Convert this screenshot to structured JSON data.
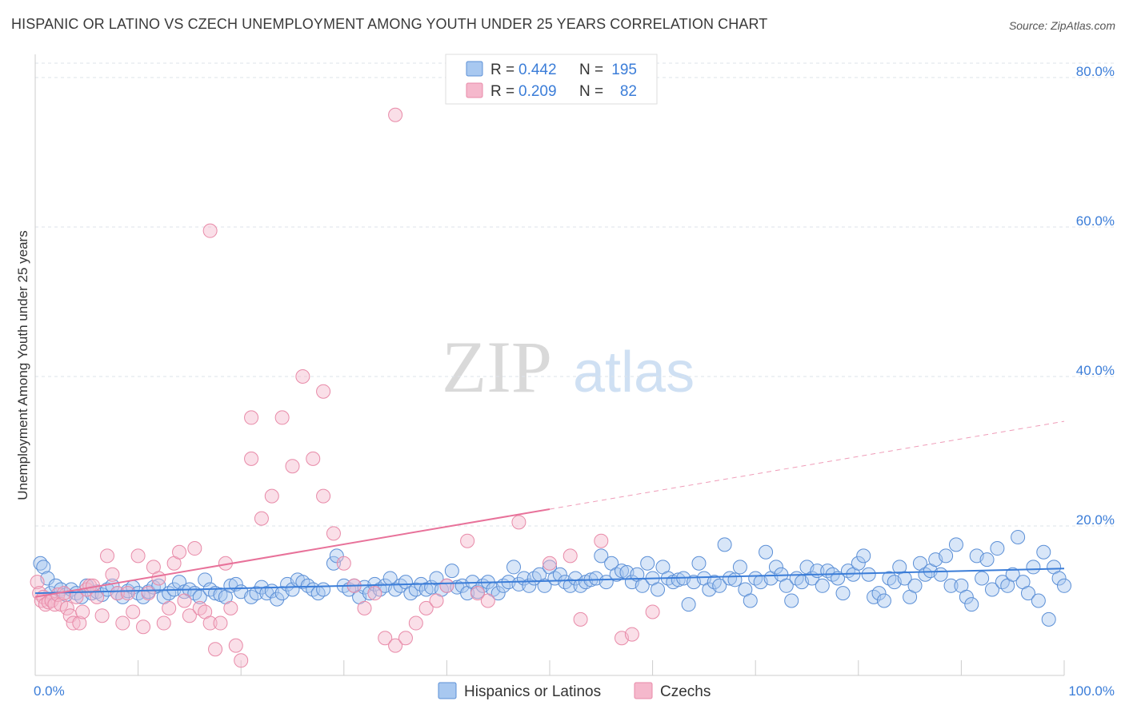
{
  "header": {
    "title": "HISPANIC OR LATINO VS CZECH UNEMPLOYMENT AMONG YOUTH UNDER 25 YEARS CORRELATION CHART",
    "source": "Source: ZipAtlas.com"
  },
  "watermark": {
    "part1": "ZIP",
    "part2": "atlas"
  },
  "colors": {
    "blue_fill": "#a8c8f0",
    "blue_stroke": "#5b8fd6",
    "blue_line": "#3b7dd8",
    "blue_text": "#3b7dd8",
    "pink_fill": "#f5b8cc",
    "pink_stroke": "#e88aa8",
    "pink_line": "#e8729a",
    "grid": "#dde3ea",
    "axis": "#cccccc"
  },
  "legend_top": {
    "rows": [
      {
        "r_label": "R = ",
        "r_value": "0.442",
        "n_label": "N = ",
        "n_value": "195",
        "series": "blue"
      },
      {
        "r_label": "R = ",
        "r_value": "0.209",
        "n_label": "N = ",
        "n_value": "82",
        "series": "pink"
      }
    ]
  },
  "legend_bottom": [
    "Hispanics or Latinos",
    "Czechs"
  ],
  "chart_data": {
    "type": "scatter",
    "title": "HISPANIC OR LATINO VS CZECH UNEMPLOYMENT AMONG YOUTH UNDER 25 YEARS CORRELATION CHART",
    "xlabel": "",
    "ylabel": "Unemployment Among Youth under 25 years",
    "xlim": [
      0,
      100
    ],
    "ylim": [
      0,
      80
    ],
    "x_tick_labels": [
      "0.0%",
      "100.0%"
    ],
    "y_ticks": [
      20,
      40,
      60,
      80
    ],
    "y_tick_labels": [
      "20.0%",
      "40.0%",
      "60.0%",
      "80.0%"
    ],
    "legend_position": "top-center",
    "series": [
      {
        "name": "Hispanics or Latinos",
        "color": "blue",
        "trend": {
          "x0": 0,
          "y0": 11.0,
          "x1": 100,
          "y1": 14.3,
          "dashed_from": null
        },
        "points": [
          [
            0.5,
            15
          ],
          [
            0.8,
            14.5
          ],
          [
            1.2,
            13
          ],
          [
            1.5,
            11
          ],
          [
            2,
            12
          ],
          [
            2.5,
            11.5
          ],
          [
            3,
            10.8
          ],
          [
            3.5,
            11.5
          ],
          [
            4,
            11
          ],
          [
            4.5,
            10.5
          ],
          [
            5,
            12
          ],
          [
            5.5,
            11
          ],
          [
            6,
            11.2
          ],
          [
            6.5,
            10.8
          ],
          [
            7,
            11.5
          ],
          [
            7.5,
            12
          ],
          [
            8,
            11
          ],
          [
            8.5,
            10.5
          ],
          [
            9,
            11.3
          ],
          [
            9.5,
            11.8
          ],
          [
            10,
            11
          ],
          [
            10.5,
            10.5
          ],
          [
            11,
            11.2
          ],
          [
            11.5,
            11.8
          ],
          [
            12,
            12
          ],
          [
            12.5,
            10.5
          ],
          [
            13,
            11
          ],
          [
            13.5,
            11.5
          ],
          [
            14,
            12.5
          ],
          [
            14.5,
            11.2
          ],
          [
            15,
            11.5
          ],
          [
            15.5,
            11
          ],
          [
            16,
            10.5
          ],
          [
            16.5,
            12.8
          ],
          [
            17,
            11.5
          ],
          [
            17.5,
            11
          ],
          [
            18,
            10.8
          ],
          [
            18.5,
            10.5
          ],
          [
            19,
            12
          ],
          [
            19.5,
            12.2
          ],
          [
            20,
            11.2
          ],
          [
            21,
            10.5
          ],
          [
            21.5,
            11
          ],
          [
            22,
            11.8
          ],
          [
            22.5,
            11
          ],
          [
            23,
            11.3
          ],
          [
            23.5,
            10.2
          ],
          [
            24,
            11
          ],
          [
            24.5,
            12.2
          ],
          [
            25,
            11.5
          ],
          [
            25.5,
            12.8
          ],
          [
            26,
            12.5
          ],
          [
            26.5,
            12
          ],
          [
            27,
            11.5
          ],
          [
            27.5,
            11
          ],
          [
            28,
            11.5
          ],
          [
            29,
            15
          ],
          [
            29.3,
            16
          ],
          [
            30,
            12
          ],
          [
            30.5,
            11.5
          ],
          [
            31,
            12
          ],
          [
            31.5,
            10.5
          ],
          [
            32,
            11.8
          ],
          [
            32.5,
            11
          ],
          [
            33,
            12.2
          ],
          [
            33.5,
            11.5
          ],
          [
            34,
            12
          ],
          [
            34.5,
            13
          ],
          [
            35,
            11.5
          ],
          [
            35.5,
            12
          ],
          [
            36,
            12.5
          ],
          [
            36.5,
            11
          ],
          [
            37,
            11.5
          ],
          [
            37.5,
            12.2
          ],
          [
            38,
            11.5
          ],
          [
            38.5,
            11.8
          ],
          [
            39,
            13
          ],
          [
            39.5,
            11.5
          ],
          [
            40,
            12
          ],
          [
            40.5,
            14
          ],
          [
            41,
            11.8
          ],
          [
            41.5,
            12
          ],
          [
            42,
            11
          ],
          [
            42.5,
            12.5
          ],
          [
            43,
            11.2
          ],
          [
            43.5,
            12
          ],
          [
            44,
            12.5
          ],
          [
            44.5,
            11.5
          ],
          [
            45,
            11
          ],
          [
            45.5,
            12
          ],
          [
            46,
            12.5
          ],
          [
            46.5,
            14.5
          ],
          [
            47,
            12.2
          ],
          [
            47.5,
            13
          ],
          [
            48,
            12
          ],
          [
            48.5,
            13
          ],
          [
            49,
            13.5
          ],
          [
            49.5,
            12
          ],
          [
            50,
            14.5
          ],
          [
            50.5,
            13
          ],
          [
            51,
            13.5
          ],
          [
            51.5,
            12.5
          ],
          [
            52,
            12
          ],
          [
            52.5,
            13
          ],
          [
            53,
            12
          ],
          [
            53.5,
            12.5
          ],
          [
            54,
            12.8
          ],
          [
            54.5,
            13
          ],
          [
            55,
            16
          ],
          [
            55.5,
            12.5
          ],
          [
            56,
            15
          ],
          [
            56.5,
            13.5
          ],
          [
            57,
            14
          ],
          [
            57.5,
            13.8
          ],
          [
            58,
            12.5
          ],
          [
            58.5,
            13.5
          ],
          [
            59,
            12
          ],
          [
            59.5,
            15
          ],
          [
            60,
            13
          ],
          [
            60.5,
            11.5
          ],
          [
            61,
            14.5
          ],
          [
            61.5,
            13
          ],
          [
            62,
            12.5
          ],
          [
            62.5,
            12.8
          ],
          [
            63,
            13
          ],
          [
            63.5,
            9.5
          ],
          [
            64,
            12.5
          ],
          [
            64.5,
            15
          ],
          [
            65,
            13
          ],
          [
            65.5,
            11.5
          ],
          [
            66,
            12.5
          ],
          [
            66.5,
            12
          ],
          [
            67,
            17.5
          ],
          [
            67.5,
            13
          ],
          [
            68,
            12.8
          ],
          [
            68.5,
            14.5
          ],
          [
            69,
            11.5
          ],
          [
            69.5,
            10
          ],
          [
            70,
            13
          ],
          [
            70.5,
            12.5
          ],
          [
            71,
            16.5
          ],
          [
            71.5,
            13
          ],
          [
            72,
            14.5
          ],
          [
            72.5,
            13.5
          ],
          [
            73,
            12
          ],
          [
            73.5,
            10
          ],
          [
            74,
            13
          ],
          [
            74.5,
            12.5
          ],
          [
            75,
            14.5
          ],
          [
            75.5,
            13
          ],
          [
            76,
            14
          ],
          [
            76.5,
            12
          ],
          [
            77,
            14
          ],
          [
            77.5,
            13.5
          ],
          [
            78,
            13
          ],
          [
            78.5,
            11
          ],
          [
            79,
            14
          ],
          [
            79.5,
            13.5
          ],
          [
            80,
            15
          ],
          [
            80.5,
            16
          ],
          [
            81,
            13.5
          ],
          [
            81.5,
            10.5
          ],
          [
            82,
            11
          ],
          [
            82.5,
            10
          ],
          [
            83,
            13
          ],
          [
            83.5,
            12.5
          ],
          [
            84,
            14.5
          ],
          [
            84.5,
            13
          ],
          [
            85,
            10.5
          ],
          [
            85.5,
            12
          ],
          [
            86,
            15
          ],
          [
            86.5,
            13.5
          ],
          [
            87,
            14
          ],
          [
            87.5,
            15.5
          ],
          [
            88,
            13.5
          ],
          [
            88.5,
            16
          ],
          [
            89,
            12
          ],
          [
            89.5,
            17.5
          ],
          [
            90,
            12
          ],
          [
            90.5,
            10.5
          ],
          [
            91,
            9.5
          ],
          [
            91.5,
            16
          ],
          [
            92,
            13
          ],
          [
            92.5,
            15.5
          ],
          [
            93,
            11.5
          ],
          [
            93.5,
            17
          ],
          [
            94,
            12.5
          ],
          [
            94.5,
            12
          ],
          [
            95,
            13.5
          ],
          [
            95.5,
            18.5
          ],
          [
            96,
            12.5
          ],
          [
            96.5,
            11
          ],
          [
            97,
            14.5
          ],
          [
            97.5,
            10
          ],
          [
            98,
            16.5
          ],
          [
            98.5,
            7.5
          ],
          [
            99,
            14.5
          ],
          [
            99.5,
            13
          ],
          [
            100,
            12
          ]
        ]
      },
      {
        "name": "Czechs",
        "color": "pink",
        "trend": {
          "x0": 0,
          "y0": 10.5,
          "x1": 100,
          "y1": 34.0,
          "dashed_from": 50
        },
        "points": [
          [
            0.2,
            12.5
          ],
          [
            0.4,
            11
          ],
          [
            0.6,
            10
          ],
          [
            0.8,
            10.5
          ],
          [
            1,
            9.5
          ],
          [
            1.3,
            9.8
          ],
          [
            1.6,
            10
          ],
          [
            1.9,
            9.5
          ],
          [
            2.2,
            10.8
          ],
          [
            2.5,
            9.5
          ],
          [
            2.8,
            11
          ],
          [
            3.1,
            9
          ],
          [
            3.4,
            8
          ],
          [
            3.7,
            7
          ],
          [
            4,
            10.5
          ],
          [
            4.3,
            7
          ],
          [
            4.6,
            8.5
          ],
          [
            5,
            11.5
          ],
          [
            5.3,
            12
          ],
          [
            5.6,
            12
          ],
          [
            6,
            10.5
          ],
          [
            6.5,
            8
          ],
          [
            7,
            16
          ],
          [
            7.5,
            13.5
          ],
          [
            8,
            11
          ],
          [
            8.5,
            7
          ],
          [
            9,
            11
          ],
          [
            9.5,
            8.5
          ],
          [
            10,
            16
          ],
          [
            10.5,
            6.5
          ],
          [
            11,
            11
          ],
          [
            11.5,
            14.5
          ],
          [
            12,
            13
          ],
          [
            12.5,
            7
          ],
          [
            13,
            9
          ],
          [
            13.5,
            15
          ],
          [
            14,
            16.5
          ],
          [
            14.5,
            10
          ],
          [
            15,
            8
          ],
          [
            15.5,
            17
          ],
          [
            16,
            9
          ],
          [
            16.5,
            8.5
          ],
          [
            17,
            7
          ],
          [
            17.5,
            3.5
          ],
          [
            18,
            7
          ],
          [
            18.5,
            15
          ],
          [
            19,
            9
          ],
          [
            19.5,
            4
          ],
          [
            20,
            2
          ],
          [
            21,
            29
          ],
          [
            22,
            21
          ],
          [
            23,
            24
          ],
          [
            24,
            34.5
          ],
          [
            25,
            28
          ],
          [
            26,
            40
          ],
          [
            27,
            29
          ],
          [
            28,
            24
          ],
          [
            29,
            19
          ],
          [
            30,
            15
          ],
          [
            31,
            12
          ],
          [
            32,
            9
          ],
          [
            33,
            11
          ],
          [
            34,
            5
          ],
          [
            35,
            4
          ],
          [
            36,
            5
          ],
          [
            37,
            7
          ],
          [
            38,
            9
          ],
          [
            39,
            10
          ],
          [
            40,
            12
          ],
          [
            42,
            18
          ],
          [
            43,
            11
          ],
          [
            44,
            10
          ],
          [
            47,
            20.5
          ],
          [
            50,
            15
          ],
          [
            52,
            16
          ],
          [
            53,
            7.5
          ],
          [
            55,
            18
          ],
          [
            57,
            5
          ],
          [
            58,
            5.5
          ],
          [
            60,
            8.5
          ],
          [
            35,
            75
          ],
          [
            17,
            59.5
          ],
          [
            28,
            38
          ],
          [
            21,
            34.5
          ]
        ]
      }
    ]
  }
}
